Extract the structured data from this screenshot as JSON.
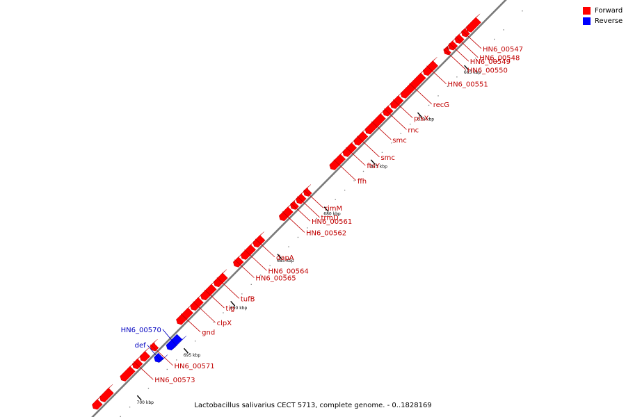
{
  "legend": {
    "forward_label": "Forward",
    "reverse_label": "Reverse",
    "forward_color": "#ff0000",
    "reverse_color": "#0000ff"
  },
  "caption": "Lactobacillus salivarius CECT 5713, complete genome. - 0..1828169",
  "colors": {
    "forward": "#ff0000",
    "forward_dark": "#b80000",
    "forward_light": "#ff5a5a",
    "reverse": "#0000ff",
    "reverse_dark": "#0000a8",
    "reverse_light": "#5a5aff",
    "backbone": "#7a7a7a",
    "label_forward": "#c00000",
    "label_reverse": "#0000c0"
  },
  "ticks": [
    {
      "label": "665 kbp",
      "kbp": 665
    },
    {
      "label": "670 kbp",
      "kbp": 670
    },
    {
      "label": "675 kbp",
      "kbp": 675
    },
    {
      "label": "680 kbp",
      "kbp": 680
    },
    {
      "label": "685 kbp",
      "kbp": 685
    },
    {
      "label": "690 kbp",
      "kbp": 690
    },
    {
      "label": "695 kbp",
      "kbp": 695
    },
    {
      "label": "700 kbp",
      "kbp": 700
    }
  ],
  "features": [
    {
      "name": "",
      "strand": "forward",
      "start_kbp": 661.8,
      "end_kbp": 663.0
    },
    {
      "name": "HN6_00547",
      "strand": "forward",
      "start_kbp": 663.0,
      "end_kbp": 663.5
    },
    {
      "name": "HN6_00548",
      "strand": "forward",
      "start_kbp": 663.6,
      "end_kbp": 664.2
    },
    {
      "name": "HN6_00549",
      "strand": "forward",
      "start_kbp": 664.3,
      "end_kbp": 664.9
    },
    {
      "name": "HN6_00550",
      "strand": "forward",
      "start_kbp": 665.0,
      "end_kbp": 665.4
    },
    {
      "name": "HN6_00551",
      "strand": "forward",
      "start_kbp": 666.4,
      "end_kbp": 667.6
    },
    {
      "name": "recG",
      "strand": "forward",
      "start_kbp": 667.7,
      "end_kbp": 670.0
    },
    {
      "name": "plsX",
      "strand": "forward",
      "start_kbp": 670.1,
      "end_kbp": 671.1
    },
    {
      "name": "rnc",
      "strand": "forward",
      "start_kbp": 671.2,
      "end_kbp": 671.9
    },
    {
      "name": "smc",
      "strand": "forward",
      "start_kbp": 672.0,
      "end_kbp": 673.8
    },
    {
      "name": "smc",
      "strand": "forward",
      "start_kbp": 673.9,
      "end_kbp": 675.0
    },
    {
      "name": "ftsY",
      "strand": "forward",
      "start_kbp": 675.1,
      "end_kbp": 676.2
    },
    {
      "name": "ffh",
      "strand": "forward",
      "start_kbp": 676.3,
      "end_kbp": 677.6
    },
    {
      "name": "rimM",
      "strand": "forward",
      "start_kbp": 679.9,
      "end_kbp": 680.4
    },
    {
      "name": "trmD",
      "strand": "forward",
      "start_kbp": 680.5,
      "end_kbp": 681.2
    },
    {
      "name": "HN6_00561",
      "strand": "forward",
      "start_kbp": 681.3,
      "end_kbp": 681.8
    },
    {
      "name": "HN6_00562",
      "strand": "forward",
      "start_kbp": 681.9,
      "end_kbp": 683.0
    },
    {
      "name": "dapA",
      "strand": "forward",
      "start_kbp": 684.9,
      "end_kbp": 685.8
    },
    {
      "name": "HN6_00564",
      "strand": "forward",
      "start_kbp": 685.9,
      "end_kbp": 687.1
    },
    {
      "name": "HN6_00565",
      "strand": "forward",
      "start_kbp": 687.2,
      "end_kbp": 687.9
    },
    {
      "name": "tufB",
      "strand": "forward",
      "start_kbp": 688.9,
      "end_kbp": 690.0
    },
    {
      "name": "tig",
      "strand": "forward",
      "start_kbp": 690.1,
      "end_kbp": 691.4
    },
    {
      "name": "clpX",
      "strand": "forward",
      "start_kbp": 691.5,
      "end_kbp": 692.5
    },
    {
      "name": "gnd",
      "strand": "forward",
      "start_kbp": 692.6,
      "end_kbp": 694.0
    },
    {
      "name": "HN6_00570",
      "strand": "reverse",
      "start_kbp": 694.6,
      "end_kbp": 695.9
    },
    {
      "name": "def",
      "strand": "reverse",
      "start_kbp": 696.6,
      "end_kbp": 697.2
    },
    {
      "name": "HN6_00571",
      "strand": "forward",
      "start_kbp": 696.3,
      "end_kbp": 696.8
    },
    {
      "name": "",
      "strand": "forward",
      "start_kbp": 697.2,
      "end_kbp": 697.9
    },
    {
      "name": "HN6_00573",
      "strand": "forward",
      "start_kbp": 698.0,
      "end_kbp": 698.7
    },
    {
      "name": "",
      "strand": "forward",
      "start_kbp": 698.8,
      "end_kbp": 700.0
    },
    {
      "name": "",
      "strand": "forward",
      "start_kbp": 701.1,
      "end_kbp": 702.2
    },
    {
      "name": "",
      "strand": "forward",
      "start_kbp": 702.3,
      "end_kbp": 703.0
    }
  ]
}
